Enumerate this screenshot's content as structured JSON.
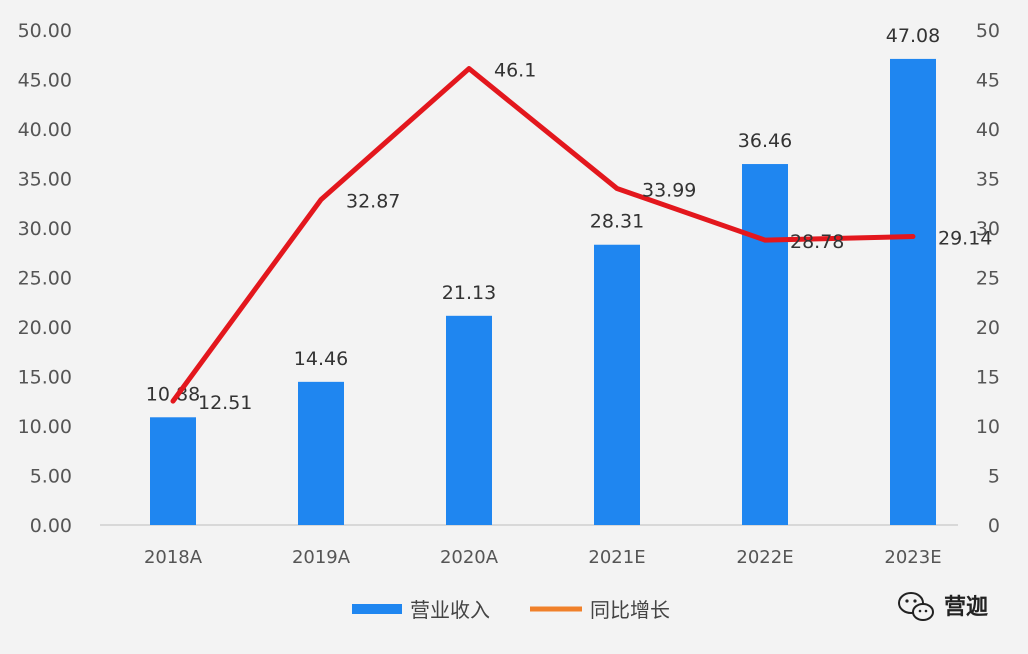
{
  "chart_data": {
    "type": "bar",
    "categories": [
      "2018A",
      "2019A",
      "2020A",
      "2021E",
      "2022E",
      "2023E"
    ],
    "series": [
      {
        "name": "营业收入",
        "type": "bar",
        "axis": "left",
        "values": [
          10.88,
          14.46,
          21.13,
          28.31,
          36.46,
          47.08
        ],
        "labels": [
          "10.88",
          "14.46",
          "21.13",
          "28.31",
          "36.46",
          "47.08"
        ],
        "color": "#1f86f0"
      },
      {
        "name": "同比增长",
        "type": "line",
        "axis": "right",
        "values": [
          12.51,
          32.87,
          46.1,
          33.99,
          28.78,
          29.14
        ],
        "labels": [
          "12.51",
          "32.87",
          "46.1",
          "33.99",
          "28.78",
          "29.14"
        ],
        "color": "#e3171d",
        "legend_color": "#f0802a"
      }
    ],
    "y_left": {
      "ylim": [
        0,
        50
      ],
      "ticks": [
        "0.00",
        "5.00",
        "10.00",
        "15.00",
        "20.00",
        "25.00",
        "30.00",
        "35.00",
        "40.00",
        "45.00",
        "50.00"
      ]
    },
    "y_right": {
      "ylim": [
        0,
        50
      ],
      "ticks": [
        "0",
        "5",
        "10",
        "15",
        "20",
        "25",
        "30",
        "35",
        "40",
        "45",
        "50"
      ]
    },
    "grid": false,
    "legend_position": "bottom-center",
    "watermark": "营迦"
  }
}
